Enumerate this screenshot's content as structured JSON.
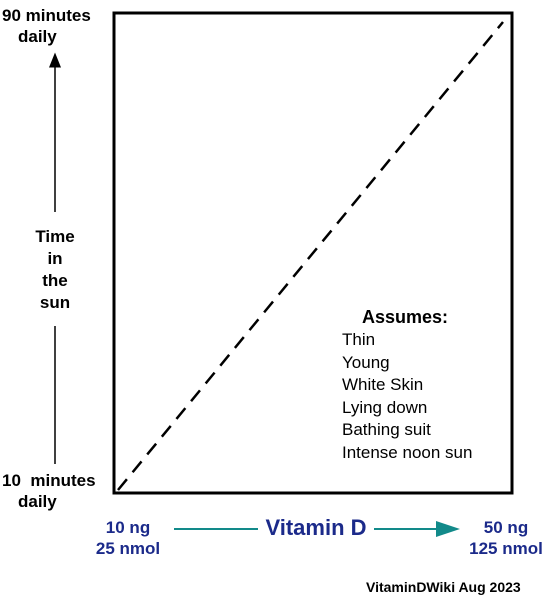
{
  "chart_data": {
    "type": "line",
    "title": "",
    "y_axis": {
      "label": [
        "Time",
        "in",
        "the",
        "sun"
      ],
      "top_label": [
        "90 minutes",
        "daily"
      ],
      "bottom_label": [
        "10  minutes",
        "daily"
      ],
      "range_minutes": [
        10,
        90
      ]
    },
    "x_axis": {
      "label": "Vitamin D",
      "left_label": [
        "10 ng",
        "25 nmol"
      ],
      "right_label": [
        "50 ng",
        "125 nmol"
      ],
      "range_ng": [
        10,
        50
      ]
    },
    "series": [
      {
        "style": "dashed",
        "points": [
          {
            "x": 10,
            "y": 10
          },
          {
            "x": 50,
            "y": 90
          }
        ]
      }
    ],
    "annotation": {
      "title": "Assumes:",
      "items": [
        "Thin",
        "Young",
        "White Skin",
        "Lying down",
        "Bathing suit",
        "Intense noon sun"
      ]
    },
    "colors": {
      "axis_blue": "#1b2a8a",
      "arrow_teal": "#128a8a"
    }
  },
  "footer": {
    "credit": "VitaminDWiki Aug 2023"
  }
}
